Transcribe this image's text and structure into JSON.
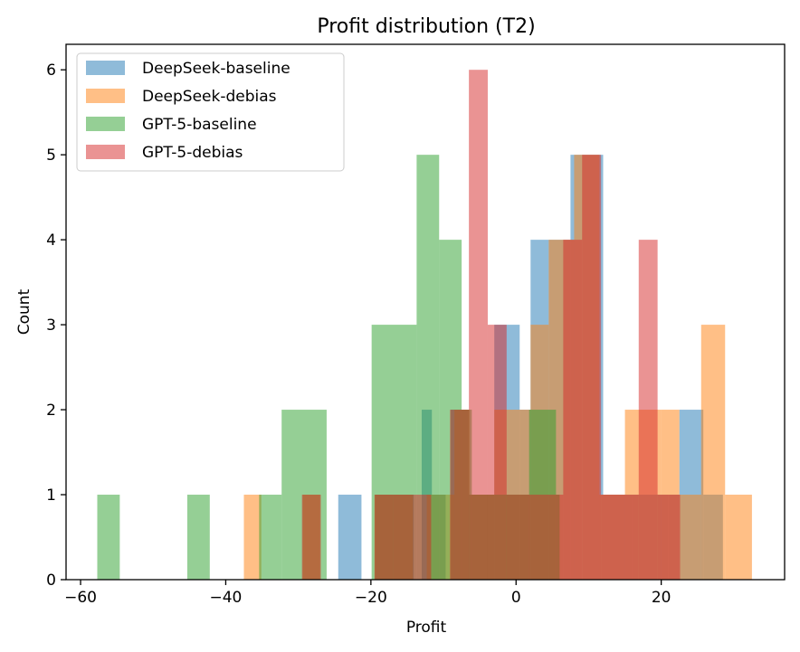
{
  "chart_data": {
    "type": "histogram",
    "title": "Profit distribution (T2)",
    "xlabel": "Profit",
    "ylabel": "Count",
    "xlim": [
      -62,
      37
    ],
    "ylim": [
      0,
      6.3
    ],
    "xticks": [
      -60,
      -40,
      -20,
      0,
      20
    ],
    "xtick_labels": [
      "−60",
      "−40",
      "−20",
      "0",
      "20"
    ],
    "yticks": [
      0,
      1,
      2,
      3,
      4,
      5,
      6
    ],
    "ytick_labels": [
      "0",
      "1",
      "2",
      "3",
      "4",
      "5",
      "6"
    ],
    "grid": false,
    "legend_position": "top-left",
    "alpha": 0.5,
    "series": [
      {
        "name": "DeepSeek-baseline",
        "color": "#1f77b4",
        "bins": [
          {
            "x0": -24.5,
            "x1": -21.3,
            "count": 1
          },
          {
            "x0": -19.4,
            "x1": -17.8,
            "count": 1
          },
          {
            "x0": -17.8,
            "x1": -14.1,
            "count": 1
          },
          {
            "x0": -13.0,
            "x1": -11.6,
            "count": 2
          },
          {
            "x0": -11.6,
            "x1": -9.7,
            "count": 1
          },
          {
            "x0": -9.0,
            "x1": -6.5,
            "count": 2
          },
          {
            "x0": -6.5,
            "x1": -3.0,
            "count": 1
          },
          {
            "x0": -3.0,
            "x1": 0.5,
            "count": 3
          },
          {
            "x0": 0.5,
            "x1": 2.0,
            "count": 2
          },
          {
            "x0": 2.0,
            "x1": 4.5,
            "count": 4
          },
          {
            "x0": 4.5,
            "x1": 7.5,
            "count": 4
          },
          {
            "x0": 7.5,
            "x1": 9.0,
            "count": 5
          },
          {
            "x0": 9.0,
            "x1": 12.0,
            "count": 5
          },
          {
            "x0": 12.0,
            "x1": 16.0,
            "count": 1
          },
          {
            "x0": 16.0,
            "x1": 21.0,
            "count": 1
          },
          {
            "x0": 21.0,
            "x1": 22.5,
            "count": 1
          },
          {
            "x0": 22.5,
            "x1": 25.8,
            "count": 2
          },
          {
            "x0": 25.8,
            "x1": 28.5,
            "count": 1
          }
        ]
      },
      {
        "name": "DeepSeek-debias",
        "color": "#ff7f0e",
        "bins": [
          {
            "x0": -37.5,
            "x1": -35.1,
            "count": 1
          },
          {
            "x0": -29.4,
            "x1": -27.0,
            "count": 1
          },
          {
            "x0": -19.5,
            "x1": -16.8,
            "count": 1
          },
          {
            "x0": -16.8,
            "x1": -14.2,
            "count": 1
          },
          {
            "x0": -12.3,
            "x1": -8.5,
            "count": 1
          },
          {
            "x0": -8.5,
            "x1": -6.4,
            "count": 2
          },
          {
            "x0": -6.4,
            "x1": -3.0,
            "count": 1
          },
          {
            "x0": -3.0,
            "x1": 2.0,
            "count": 2
          },
          {
            "x0": 2.0,
            "x1": 4.5,
            "count": 3
          },
          {
            "x0": 4.5,
            "x1": 8.0,
            "count": 4
          },
          {
            "x0": 8.0,
            "x1": 11.5,
            "count": 5
          },
          {
            "x0": 11.5,
            "x1": 15.0,
            "count": 1
          },
          {
            "x0": 15.0,
            "x1": 20.0,
            "count": 2
          },
          {
            "x0": 20.0,
            "x1": 22.5,
            "count": 2
          },
          {
            "x0": 22.5,
            "x1": 25.5,
            "count": 1
          },
          {
            "x0": 25.5,
            "x1": 28.8,
            "count": 3
          },
          {
            "x0": 28.8,
            "x1": 32.5,
            "count": 1
          }
        ]
      },
      {
        "name": "GPT-5-baseline",
        "color": "#2ca02c",
        "bins": [
          {
            "x0": -57.7,
            "x1": -54.6,
            "count": 1
          },
          {
            "x0": -45.3,
            "x1": -42.2,
            "count": 1
          },
          {
            "x0": -35.4,
            "x1": -32.3,
            "count": 1
          },
          {
            "x0": -32.3,
            "x1": -26.1,
            "count": 2
          },
          {
            "x0": -19.9,
            "x1": -13.7,
            "count": 3
          },
          {
            "x0": -13.7,
            "x1": -10.6,
            "count": 5
          },
          {
            "x0": -10.6,
            "x1": -7.5,
            "count": 4
          },
          {
            "x0": -7.5,
            "x1": -6.1,
            "count": 2
          },
          {
            "x0": -6.1,
            "x1": 1.8,
            "count": 1
          },
          {
            "x0": 1.8,
            "x1": 5.5,
            "count": 2
          },
          {
            "x0": 5.5,
            "x1": 6.0,
            "count": 1
          }
        ]
      },
      {
        "name": "GPT-5-debias",
        "color": "#d62728",
        "bins": [
          {
            "x0": -29.5,
            "x1": -26.9,
            "count": 1
          },
          {
            "x0": -19.5,
            "x1": -16.9,
            "count": 1
          },
          {
            "x0": -16.9,
            "x1": -11.7,
            "count": 1
          },
          {
            "x0": -9.1,
            "x1": -6.5,
            "count": 2
          },
          {
            "x0": -6.5,
            "x1": -3.9,
            "count": 6
          },
          {
            "x0": -3.9,
            "x1": -1.3,
            "count": 3
          },
          {
            "x0": -1.3,
            "x1": 6.5,
            "count": 1
          },
          {
            "x0": 6.5,
            "x1": 9.1,
            "count": 4
          },
          {
            "x0": 9.1,
            "x1": 11.7,
            "count": 5
          },
          {
            "x0": 11.7,
            "x1": 14.3,
            "count": 1
          },
          {
            "x0": 14.3,
            "x1": 16.9,
            "count": 1
          },
          {
            "x0": 16.9,
            "x1": 19.5,
            "count": 4
          },
          {
            "x0": 19.5,
            "x1": 22.6,
            "count": 1
          }
        ]
      }
    ]
  }
}
